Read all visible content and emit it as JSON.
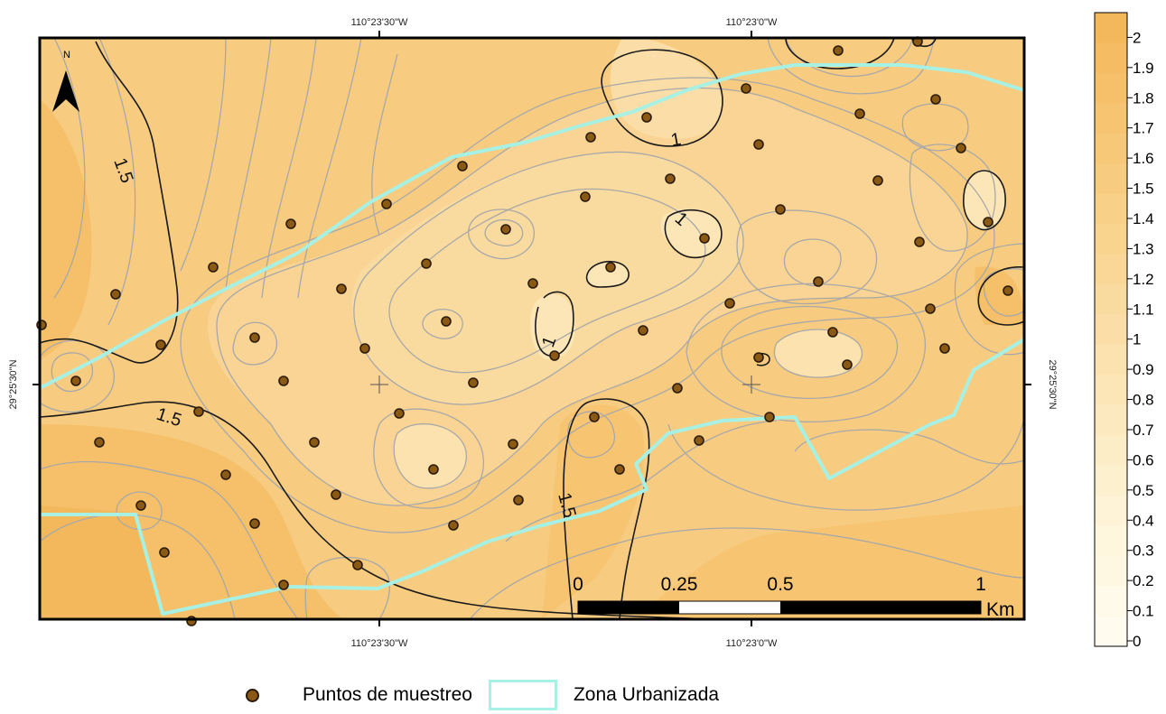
{
  "map": {
    "coords": {
      "top_left": "110°23'30\"W",
      "top_right": "110°23'0\"W",
      "bottom_left": "110°23'30\"W",
      "bottom_right": "110°23'0\"W",
      "left_lat": "29°25'30\"N",
      "right_lat": "29°25'30\"N"
    },
    "north_label": "N",
    "contour_labels": [
      "1.5",
      "1.5",
      "1.5",
      "1",
      "1",
      "1",
      "1"
    ],
    "colors": {
      "urban_boundary": "#a7f0e4",
      "sample_point": "#8a5a14",
      "low_value": "#fffbe0",
      "high_value": "#f4b85c"
    }
  },
  "scale_bar": {
    "ticks": [
      "0",
      "0.25",
      "0.5",
      "1"
    ],
    "unit": "Km"
  },
  "color_ramp": {
    "labels": [
      "2",
      "1.9",
      "1.8",
      "1.7",
      "1.6",
      "1.5",
      "1.4",
      "1.3",
      "1.2",
      "1.1",
      "1",
      "0.9",
      "0.8",
      "0.7",
      "0.6",
      "0.5",
      "0.4",
      "0.3",
      "0.2",
      "0.1",
      "0"
    ],
    "colors": [
      "#f4b85c",
      "#f5bc63",
      "#f6c06a",
      "#f7c472",
      "#f8c879",
      "#f8cc80",
      "#f9d088",
      "#f9d48f",
      "#fad797",
      "#fadb9f",
      "#fbdea7",
      "#fbe2af",
      "#fce6b7",
      "#fce9bf",
      "#fdedc7",
      "#fdf0cf",
      "#fef3d6",
      "#fef6dd",
      "#fef8e3",
      "#fffae9",
      "#fffcef"
    ]
  },
  "legend": {
    "points_label": "Puntos de muestreo",
    "urban_label": "Zona Urbanizada"
  },
  "sample_points": [
    [
      928,
      56
    ],
    [
      1016,
      46
    ],
    [
      826,
      98
    ],
    [
      716,
      130
    ],
    [
      952,
      126
    ],
    [
      1036,
      110
    ],
    [
      840,
      160
    ],
    [
      654,
      152
    ],
    [
      1064,
      164
    ],
    [
      512,
      184
    ],
    [
      742,
      198
    ],
    [
      428,
      226
    ],
    [
      648,
      218
    ],
    [
      972,
      200
    ],
    [
      864,
      232
    ],
    [
      1094,
      246
    ],
    [
      322,
      248
    ],
    [
      560,
      254
    ],
    [
      780,
      264
    ],
    [
      1018,
      268
    ],
    [
      236,
      296
    ],
    [
      472,
      292
    ],
    [
      676,
      296
    ],
    [
      906,
      312
    ],
    [
      1116,
      322
    ],
    [
      128,
      326
    ],
    [
      378,
      320
    ],
    [
      590,
      314
    ],
    [
      808,
      336
    ],
    [
      1030,
      342
    ],
    [
      46,
      360
    ],
    [
      282,
      374
    ],
    [
      494,
      356
    ],
    [
      712,
      366
    ],
    [
      922,
      368
    ],
    [
      178,
      382
    ],
    [
      404,
      386
    ],
    [
      614,
      394
    ],
    [
      840,
      396
    ],
    [
      1046,
      386
    ],
    [
      84,
      422
    ],
    [
      314,
      422
    ],
    [
      524,
      424
    ],
    [
      750,
      430
    ],
    [
      938,
      404
    ],
    [
      220,
      456
    ],
    [
      442,
      458
    ],
    [
      658,
      462
    ],
    [
      852,
      462
    ],
    [
      110,
      490
    ],
    [
      348,
      490
    ],
    [
      568,
      492
    ],
    [
      774,
      488
    ],
    [
      250,
      526
    ],
    [
      480,
      520
    ],
    [
      686,
      520
    ],
    [
      156,
      560
    ],
    [
      372,
      548
    ],
    [
      574,
      554
    ],
    [
      282,
      580
    ],
    [
      502,
      582
    ],
    [
      182,
      612
    ],
    [
      396,
      626
    ],
    [
      314,
      648
    ],
    [
      212,
      688
    ]
  ]
}
